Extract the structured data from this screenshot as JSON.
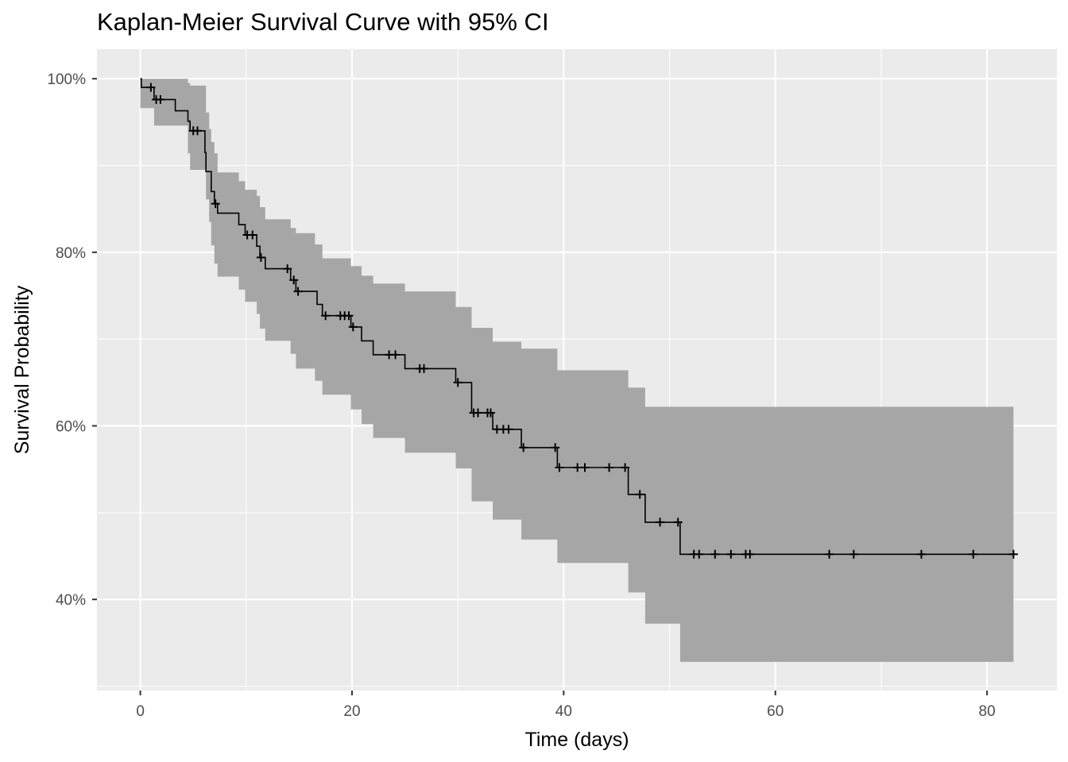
{
  "chart_data": {
    "type": "step",
    "title": "Kaplan-Meier Survival Curve with 95% CI",
    "xlabel": "Time (days)",
    "ylabel": "Survival Probability",
    "xlim": [
      -4.1,
      86.6
    ],
    "ylim": [
      0.295,
      1.034
    ],
    "grid": true,
    "x_ticks": [
      0,
      20,
      40,
      60,
      80
    ],
    "x_tick_labels": [
      "0",
      "20",
      "40",
      "60",
      "80"
    ],
    "y_ticks": [
      0.4,
      0.6,
      0.8,
      1.0
    ],
    "y_tick_labels": [
      "40%",
      "60%",
      "80%",
      "100%"
    ],
    "colors": {
      "panel_bg": "#ebebeb",
      "grid": "#ffffff",
      "ribbon": "#a6a6a6",
      "line": "#000000"
    },
    "survival_steps": [
      {
        "x": 0,
        "y": 1.0
      },
      {
        "x": 0.1,
        "y": 0.99
      },
      {
        "x": 1.3,
        "y": 0.976
      },
      {
        "x": 3.3,
        "y": 0.963
      },
      {
        "x": 4.5,
        "y": 0.951
      },
      {
        "x": 4.7,
        "y": 0.94
      },
      {
        "x": 6.1,
        "y": 0.915
      },
      {
        "x": 6.2,
        "y": 0.893
      },
      {
        "x": 6.7,
        "y": 0.87
      },
      {
        "x": 7.0,
        "y": 0.856
      },
      {
        "x": 7.3,
        "y": 0.845
      },
      {
        "x": 9.3,
        "y": 0.832
      },
      {
        "x": 9.9,
        "y": 0.82
      },
      {
        "x": 11.0,
        "y": 0.807
      },
      {
        "x": 11.3,
        "y": 0.794
      },
      {
        "x": 11.8,
        "y": 0.781
      },
      {
        "x": 14.2,
        "y": 0.768
      },
      {
        "x": 14.7,
        "y": 0.755
      },
      {
        "x": 16.7,
        "y": 0.74
      },
      {
        "x": 17.2,
        "y": 0.727
      },
      {
        "x": 19.9,
        "y": 0.714
      },
      {
        "x": 20.9,
        "y": 0.698
      },
      {
        "x": 22.0,
        "y": 0.682
      },
      {
        "x": 25.0,
        "y": 0.666
      },
      {
        "x": 29.8,
        "y": 0.65
      },
      {
        "x": 31.3,
        "y": 0.615
      },
      {
        "x": 33.3,
        "y": 0.596
      },
      {
        "x": 36.0,
        "y": 0.575
      },
      {
        "x": 39.4,
        "y": 0.552
      },
      {
        "x": 46.1,
        "y": 0.521
      },
      {
        "x": 47.7,
        "y": 0.489
      },
      {
        "x": 51.0,
        "y": 0.452
      },
      {
        "x": 82.5,
        "y": 0.452
      }
    ],
    "ci_steps": [
      {
        "x": 0,
        "upper": 1.0,
        "lower": 0.966
      },
      {
        "x": 1.3,
        "upper": 1.0,
        "lower": 0.946
      },
      {
        "x": 4.5,
        "upper": 0.995,
        "lower": 0.914
      },
      {
        "x": 4.7,
        "upper": 0.992,
        "lower": 0.895
      },
      {
        "x": 6.2,
        "upper": 0.961,
        "lower": 0.861
      },
      {
        "x": 6.5,
        "upper": 0.942,
        "lower": 0.835
      },
      {
        "x": 6.7,
        "upper": 0.927,
        "lower": 0.808
      },
      {
        "x": 7.0,
        "upper": 0.914,
        "lower": 0.787
      },
      {
        "x": 7.3,
        "upper": 0.892,
        "lower": 0.772
      },
      {
        "x": 9.3,
        "upper": 0.882,
        "lower": 0.757
      },
      {
        "x": 9.9,
        "upper": 0.872,
        "lower": 0.743
      },
      {
        "x": 11.0,
        "upper": 0.865,
        "lower": 0.729
      },
      {
        "x": 11.3,
        "upper": 0.852,
        "lower": 0.712
      },
      {
        "x": 11.8,
        "upper": 0.838,
        "lower": 0.698
      },
      {
        "x": 14.2,
        "upper": 0.828,
        "lower": 0.683
      },
      {
        "x": 14.7,
        "upper": 0.822,
        "lower": 0.666
      },
      {
        "x": 16.5,
        "upper": 0.809,
        "lower": 0.652
      },
      {
        "x": 17.2,
        "upper": 0.793,
        "lower": 0.636
      },
      {
        "x": 19.9,
        "upper": 0.784,
        "lower": 0.619
      },
      {
        "x": 20.9,
        "upper": 0.773,
        "lower": 0.602
      },
      {
        "x": 22.0,
        "upper": 0.764,
        "lower": 0.586
      },
      {
        "x": 25.0,
        "upper": 0.755,
        "lower": 0.569
      },
      {
        "x": 29.8,
        "upper": 0.737,
        "lower": 0.551
      },
      {
        "x": 31.3,
        "upper": 0.713,
        "lower": 0.513
      },
      {
        "x": 33.3,
        "upper": 0.697,
        "lower": 0.492
      },
      {
        "x": 36.0,
        "upper": 0.689,
        "lower": 0.469
      },
      {
        "x": 39.4,
        "upper": 0.664,
        "lower": 0.442
      },
      {
        "x": 46.1,
        "upper": 0.644,
        "lower": 0.408
      },
      {
        "x": 47.7,
        "upper": 0.622,
        "lower": 0.372
      },
      {
        "x": 51.0,
        "upper": 0.622,
        "lower": 0.328
      },
      {
        "x": 82.5,
        "upper": 0.622,
        "lower": 0.328
      }
    ],
    "censor_marks": [
      {
        "x": 1.0,
        "y": 0.99
      },
      {
        "x": 1.5,
        "y": 0.976
      },
      {
        "x": 1.9,
        "y": 0.976
      },
      {
        "x": 5.0,
        "y": 0.94
      },
      {
        "x": 5.4,
        "y": 0.94
      },
      {
        "x": 7.1,
        "y": 0.856
      },
      {
        "x": 10.1,
        "y": 0.82
      },
      {
        "x": 10.6,
        "y": 0.82
      },
      {
        "x": 11.4,
        "y": 0.794
      },
      {
        "x": 13.9,
        "y": 0.781
      },
      {
        "x": 14.5,
        "y": 0.768
      },
      {
        "x": 14.9,
        "y": 0.755
      },
      {
        "x": 17.5,
        "y": 0.727
      },
      {
        "x": 18.9,
        "y": 0.727
      },
      {
        "x": 19.3,
        "y": 0.727
      },
      {
        "x": 19.7,
        "y": 0.727
      },
      {
        "x": 20.1,
        "y": 0.714
      },
      {
        "x": 23.5,
        "y": 0.682
      },
      {
        "x": 24.1,
        "y": 0.682
      },
      {
        "x": 26.4,
        "y": 0.666
      },
      {
        "x": 26.8,
        "y": 0.666
      },
      {
        "x": 30.0,
        "y": 0.65
      },
      {
        "x": 31.5,
        "y": 0.615
      },
      {
        "x": 31.9,
        "y": 0.615
      },
      {
        "x": 32.8,
        "y": 0.615
      },
      {
        "x": 33.1,
        "y": 0.615
      },
      {
        "x": 33.7,
        "y": 0.596
      },
      {
        "x": 34.3,
        "y": 0.596
      },
      {
        "x": 34.8,
        "y": 0.596
      },
      {
        "x": 36.2,
        "y": 0.575
      },
      {
        "x": 39.2,
        "y": 0.575
      },
      {
        "x": 39.6,
        "y": 0.552
      },
      {
        "x": 41.3,
        "y": 0.552
      },
      {
        "x": 42.0,
        "y": 0.552
      },
      {
        "x": 44.3,
        "y": 0.552
      },
      {
        "x": 45.8,
        "y": 0.552
      },
      {
        "x": 47.2,
        "y": 0.521
      },
      {
        "x": 49.1,
        "y": 0.489
      },
      {
        "x": 50.8,
        "y": 0.489
      },
      {
        "x": 52.3,
        "y": 0.452
      },
      {
        "x": 52.8,
        "y": 0.452
      },
      {
        "x": 54.3,
        "y": 0.452
      },
      {
        "x": 55.8,
        "y": 0.452
      },
      {
        "x": 57.2,
        "y": 0.452
      },
      {
        "x": 57.6,
        "y": 0.452
      },
      {
        "x": 65.1,
        "y": 0.452
      },
      {
        "x": 67.4,
        "y": 0.452
      },
      {
        "x": 73.8,
        "y": 0.452
      },
      {
        "x": 78.7,
        "y": 0.452
      },
      {
        "x": 82.5,
        "y": 0.452
      }
    ]
  }
}
